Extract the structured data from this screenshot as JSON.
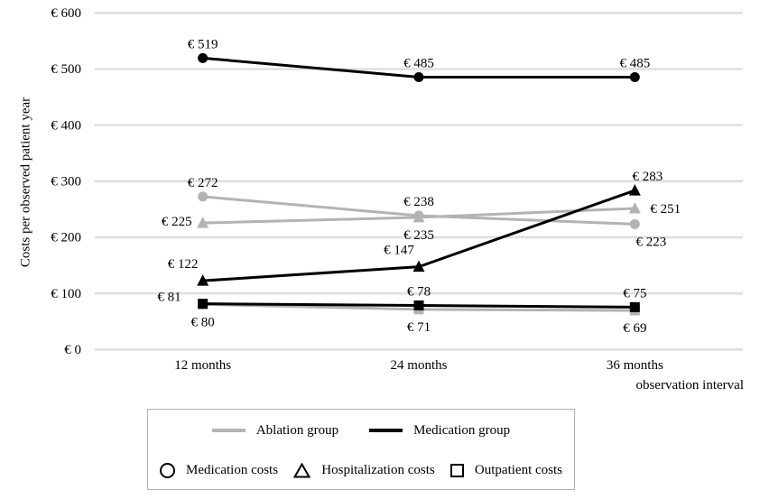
{
  "chart_data": {
    "type": "line",
    "title": "",
    "xlabel": "observation interval",
    "ylabel": "Costs per observed patient year",
    "categories": [
      "12 months",
      "24 months",
      "36 months"
    ],
    "ylim": [
      0,
      600
    ],
    "ytick_step": 100,
    "ytick_labels": [
      "€ 0",
      "€ 100",
      "€ 200",
      "€ 300",
      "€ 400",
      "€ 500",
      "€ 600"
    ],
    "grid": "horizontal",
    "legend_position": "bottom",
    "colors": {
      "ablation_gray": "#b3b3b3",
      "medication_black": "#000000",
      "gridline": "#cdcdcd",
      "gridline_highlight": "#ebebeb"
    },
    "series": [
      {
        "name": "Ablation group - Hospitalization costs",
        "group": "Ablation group",
        "cost_type": "Hospitalization costs",
        "marker": "triangle",
        "color": "#b3b3b3",
        "values": [
          225,
          235,
          251
        ],
        "data_labels": [
          "€ 225",
          "€ 235",
          "€ 251"
        ],
        "label_pos": [
          "left",
          "below",
          "right"
        ]
      },
      {
        "name": "Ablation group - Medication costs",
        "group": "Ablation group",
        "cost_type": "Medication costs",
        "marker": "circle",
        "color": "#b3b3b3",
        "values": [
          272,
          238,
          223
        ],
        "data_labels": [
          "€ 272",
          "€ 238",
          "€ 223"
        ],
        "label_pos": [
          "above",
          "above",
          "below-right"
        ]
      },
      {
        "name": "Ablation group - Outpatient costs",
        "group": "Ablation group",
        "cost_type": "Outpatient costs",
        "marker": "square",
        "color": "#b3b3b3",
        "values": [
          80,
          71,
          69
        ],
        "data_labels": [
          "€ 80",
          "€ 71",
          "€ 69"
        ],
        "label_pos": [
          "below",
          "below",
          "below"
        ]
      },
      {
        "name": "Medication group - Medication costs",
        "group": "Medication group",
        "cost_type": "Medication costs",
        "marker": "circle",
        "color": "#000000",
        "values": [
          519,
          485,
          485
        ],
        "data_labels": [
          "€ 519",
          "€ 485",
          "€ 485"
        ],
        "label_pos": [
          "above",
          "above",
          "above"
        ]
      },
      {
        "name": "Medication group - Hospitalization costs",
        "group": "Medication group",
        "cost_type": "Hospitalization costs",
        "marker": "triangle",
        "color": "#000000",
        "values": [
          122,
          147,
          283
        ],
        "data_labels": [
          "€ 122",
          "€ 147",
          "€ 283"
        ],
        "label_pos": [
          "above-left",
          "above-left",
          "above-right"
        ]
      },
      {
        "name": "Medication group - Outpatient costs",
        "group": "Medication group",
        "cost_type": "Outpatient costs",
        "marker": "square",
        "color": "#000000",
        "values": [
          81,
          78,
          75
        ],
        "data_labels": [
          "€ 81",
          "€ 78",
          "€ 75"
        ],
        "label_pos": [
          "left-above",
          "above",
          "above"
        ]
      }
    ],
    "legend": {
      "groups": [
        {
          "label": "Ablation group",
          "color": "#b3b3b3"
        },
        {
          "label": "Medication group",
          "color": "#000000"
        }
      ],
      "markers": [
        {
          "label": "Medication costs",
          "shape": "circle"
        },
        {
          "label": "Hospitalization costs",
          "shape": "triangle"
        },
        {
          "label": "Outpatient costs",
          "shape": "square"
        }
      ]
    }
  }
}
